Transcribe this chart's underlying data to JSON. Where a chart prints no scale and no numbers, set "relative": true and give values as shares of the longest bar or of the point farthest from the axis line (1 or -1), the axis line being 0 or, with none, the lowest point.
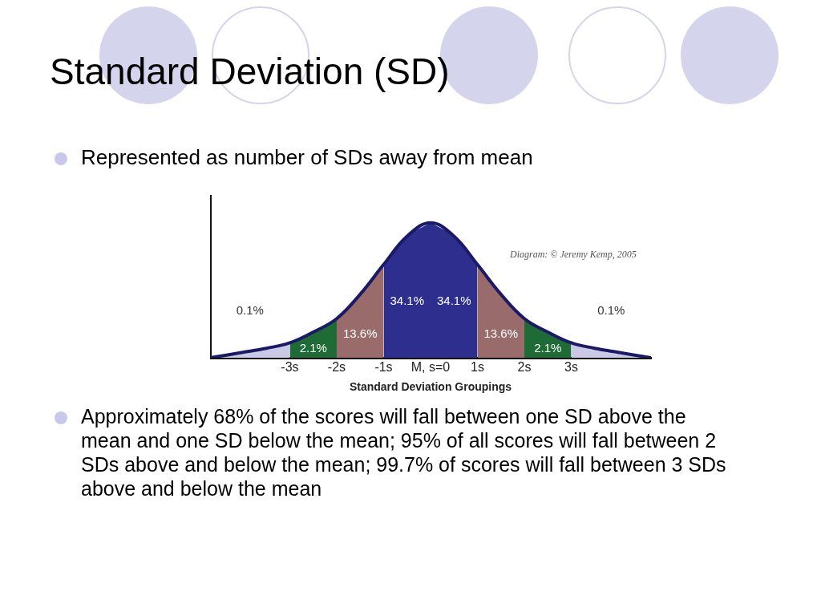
{
  "chart_data": {
    "type": "area",
    "title": "Standard Deviation (SD)",
    "subtitle": "Represented as number of SDs away from mean",
    "xlabel": "Standard Deviation Groupings",
    "relative": true,
    "grid": false,
    "legend": false,
    "tick_labels": "x",
    "xlim": [
      -4.7,
      4.7
    ],
    "xticks": [
      {
        "value": -3,
        "label": "-3s"
      },
      {
        "value": -2,
        "label": "-2s"
      },
      {
        "value": -1,
        "label": "-1s"
      },
      {
        "value": 0,
        "label": "M, s=0"
      },
      {
        "value": 1,
        "label": "1s"
      },
      {
        "value": 2,
        "label": "2s"
      },
      {
        "value": 3,
        "label": "3s"
      }
    ],
    "series": [
      {
        "type": "area",
        "color": "#c9c9e6",
        "x": [
          -4.7,
          -4,
          -3.5,
          -3
        ],
        "values": [
          0,
          0.04,
          0.07,
          0.11
        ]
      },
      {
        "type": "area",
        "color": "#1e6b35",
        "x": [
          -3,
          -2.5,
          -2
        ],
        "values": [
          0.11,
          0.19,
          0.29
        ]
      },
      {
        "type": "area",
        "color": "#9a6b6b",
        "x": [
          -2,
          -1.5,
          -1
        ],
        "values": [
          0.29,
          0.47,
          0.69
        ]
      },
      {
        "type": "area",
        "color": "#2e2e8f",
        "x": [
          -1,
          -0.5,
          0
        ],
        "values": [
          0.69,
          0.9,
          1
        ]
      },
      {
        "type": "area",
        "color": "#2e2e8f",
        "x": [
          0,
          0.5,
          1
        ],
        "values": [
          1,
          0.9,
          0.69
        ]
      },
      {
        "type": "area",
        "color": "#9a6b6b",
        "x": [
          1,
          1.5,
          2
        ],
        "values": [
          0.69,
          0.47,
          0.29
        ]
      },
      {
        "type": "area",
        "color": "#1e6b35",
        "x": [
          2,
          2.5,
          3
        ],
        "values": [
          0.29,
          0.19,
          0.11
        ]
      },
      {
        "type": "area",
        "color": "#c9c9e6",
        "x": [
          3,
          3.5,
          4,
          4.7
        ],
        "values": [
          0.11,
          0.07,
          0.04,
          0
        ]
      },
      {
        "type": "line",
        "color": "#1a1a66",
        "x": [
          -4.7,
          -4,
          -3.5,
          -3,
          -2.5,
          -2,
          -1.5,
          -1,
          -0.5,
          0,
          0.5,
          1,
          1.5,
          2,
          2.5,
          3,
          3.5,
          4,
          4.7
        ],
        "values": [
          0,
          0.04,
          0.07,
          0.11,
          0.19,
          0.29,
          0.47,
          0.69,
          0.9,
          1,
          0.9,
          0.69,
          0.47,
          0.29,
          0.19,
          0.11,
          0.07,
          0.04,
          0
        ]
      }
    ],
    "annotations": [
      "0.1%",
      "2.1%",
      "13.6%",
      "34.1%",
      "34.1%",
      "13.6%",
      "2.1%",
      "0.1%",
      "Diagram: © Jeremy Kemp, 2005",
      "Approximately 68% of the scores will fall between one SD above the mean and one SD below the mean; 95% of all scores will fall between 2 SDs above and below the mean;  99.7% of scores will fall between 3 SDs above and below the mean"
    ]
  }
}
